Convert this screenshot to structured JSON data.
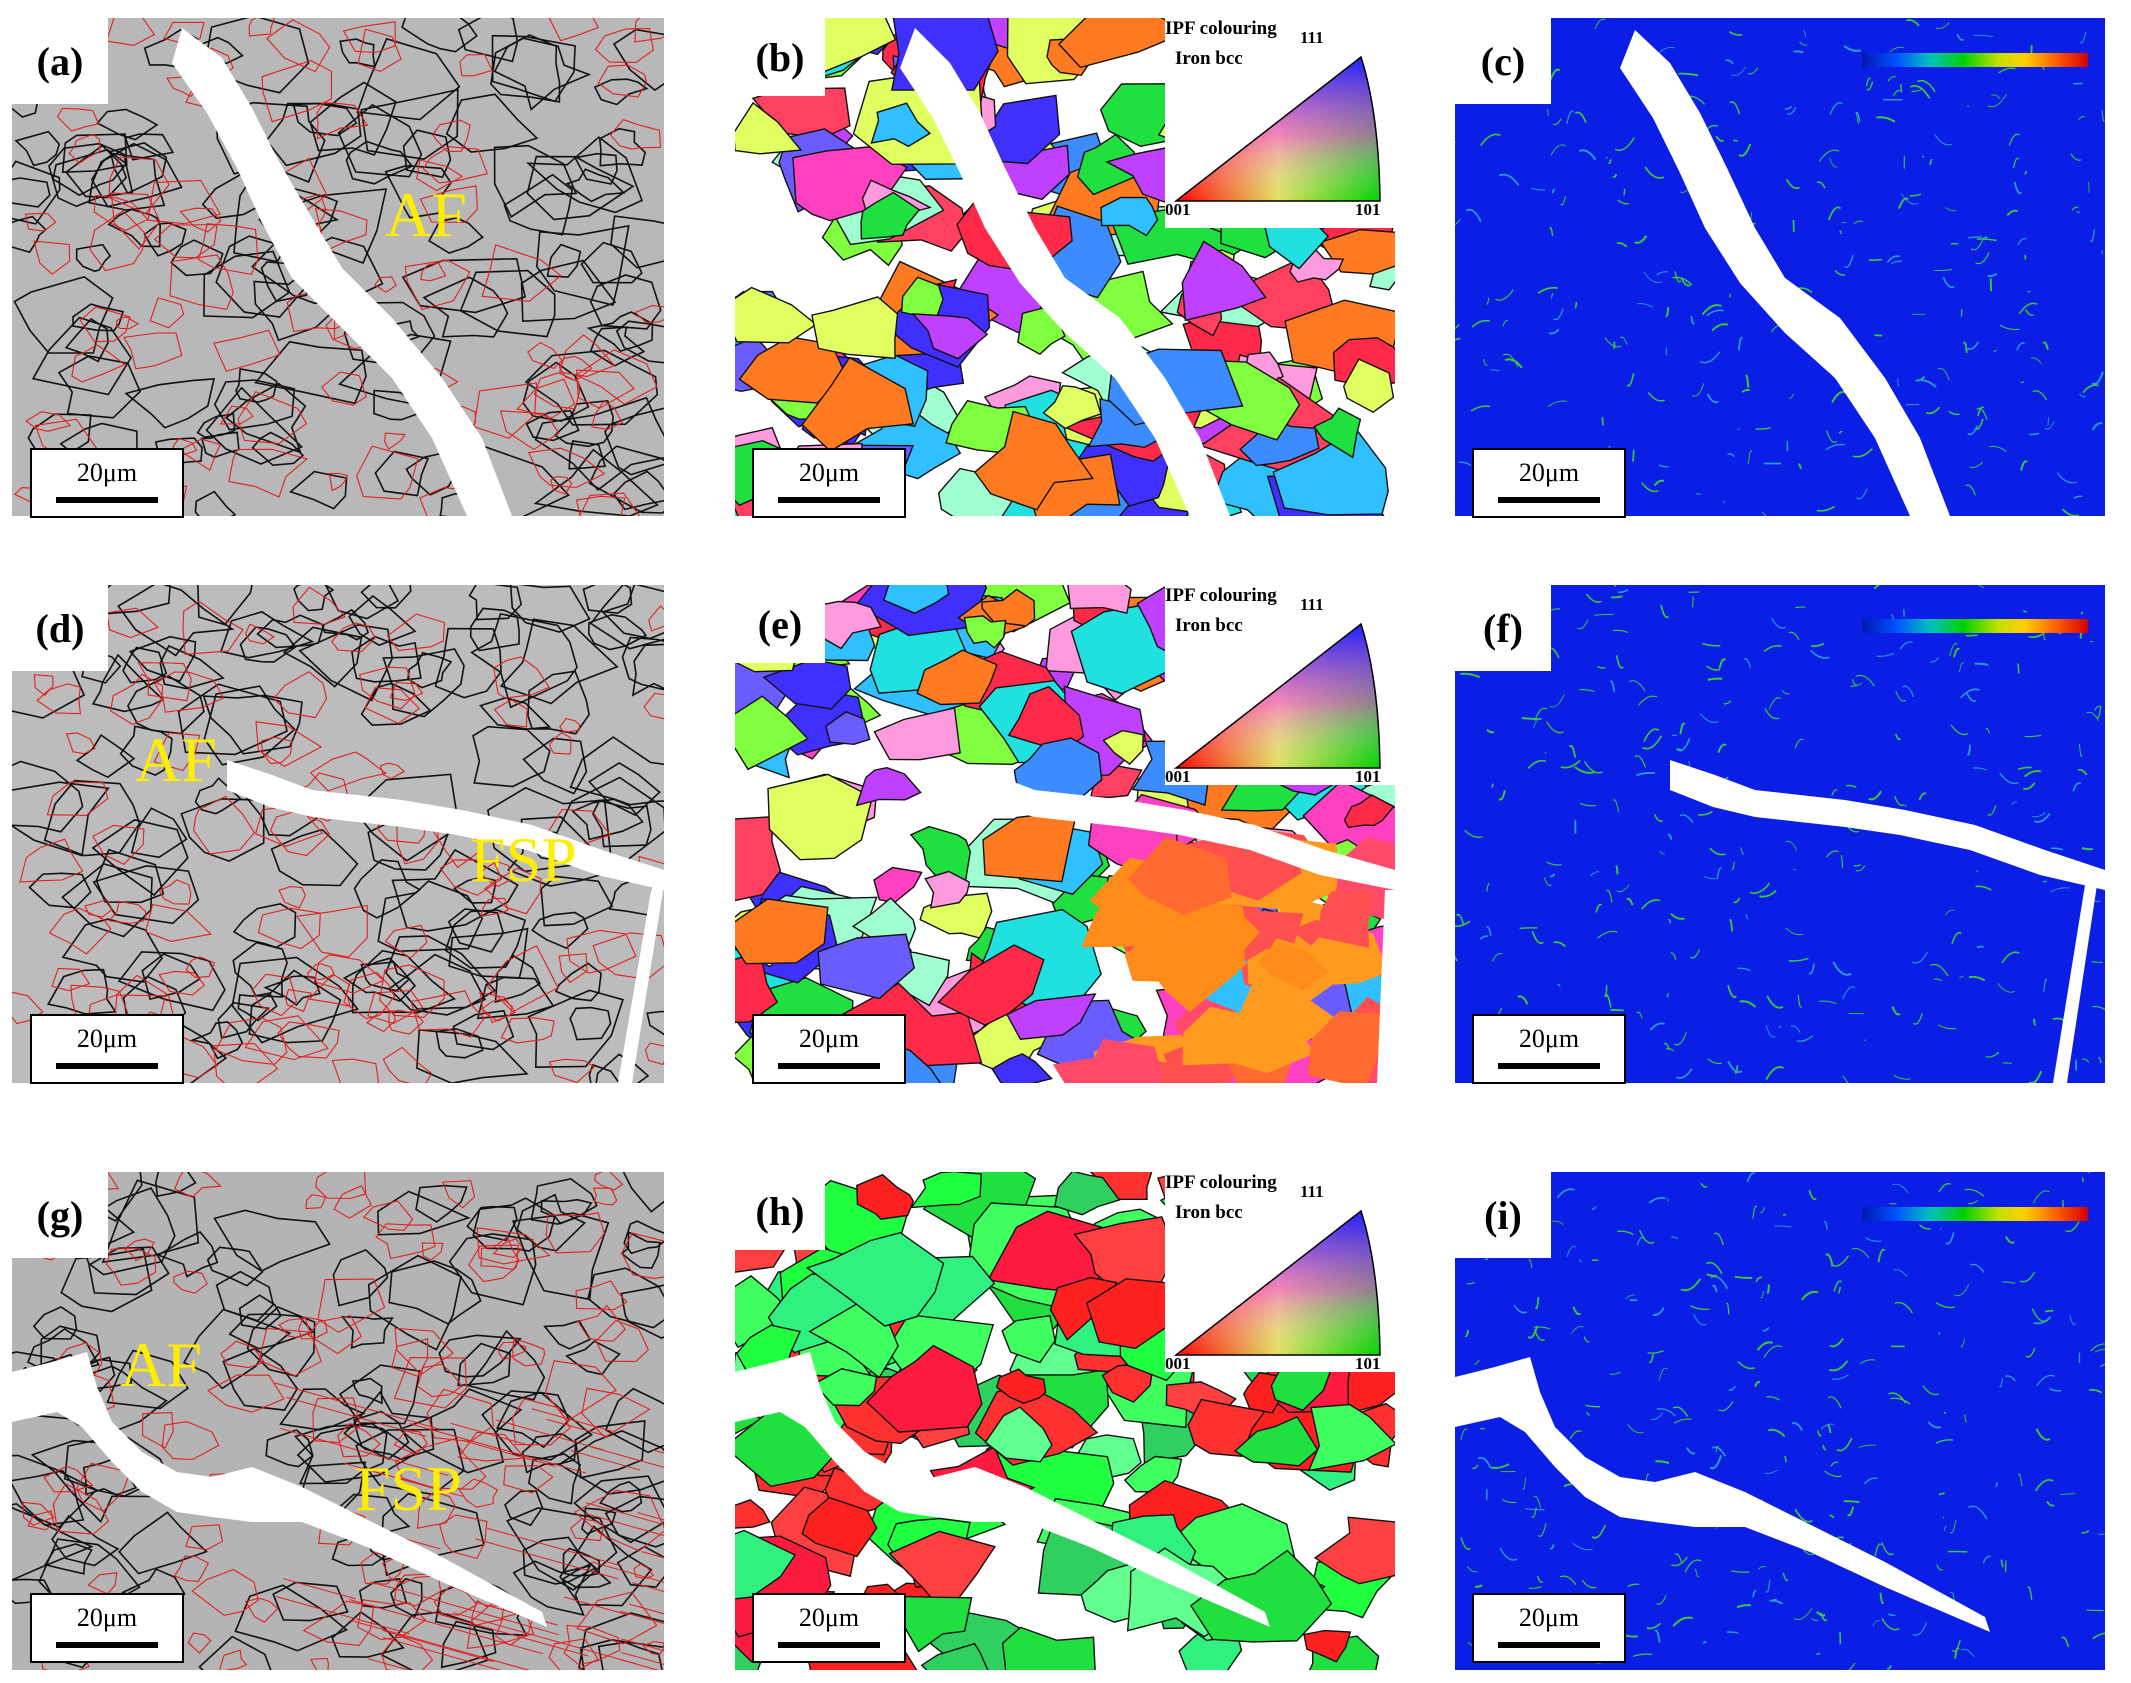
{
  "panels": {
    "a": {
      "label": "(a)",
      "phase": [
        "AF"
      ]
    },
    "b": {
      "label": "(b)"
    },
    "c": {
      "label": "(c)"
    },
    "d": {
      "label": "(d)",
      "phase": [
        "AF",
        "FSP"
      ]
    },
    "e": {
      "label": "(e)"
    },
    "f": {
      "label": "(f)"
    },
    "g": {
      "label": "(g)",
      "phase": [
        "AF",
        "FSP"
      ]
    },
    "h": {
      "label": "(h)"
    },
    "i": {
      "label": "(i)"
    }
  },
  "scale_bar": "20μm",
  "ipf_legend": {
    "title_line1": "IPF colouring",
    "title_line2": "Iron bcc",
    "corner_111": "111",
    "corner_001": "001",
    "corner_101": "101"
  },
  "colors": {
    "ebsd_gray": "#b8b8b8",
    "high_angle_boundary": "#111111",
    "low_angle_boundary": "#e02020",
    "kam_background": "#0a1ee6",
    "kam_highlight": "#3cc83c",
    "crack": "#ffffff",
    "phase_label": "#ffee00"
  }
}
